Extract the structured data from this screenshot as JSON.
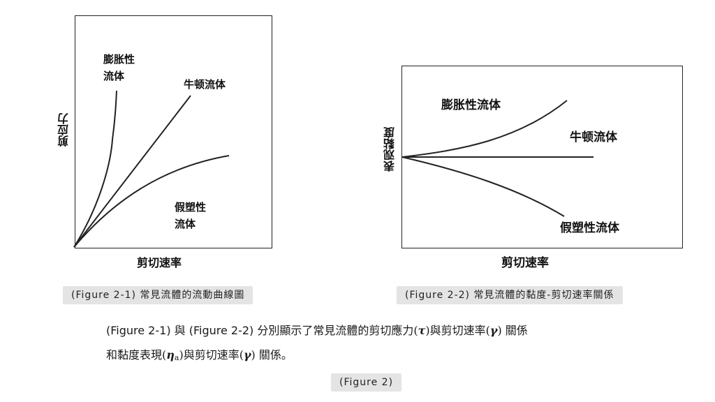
{
  "figure1": {
    "y_label": "剪应力",
    "x_label": "剪切速率",
    "curves": {
      "dilatant_line1": "膨胀性",
      "dilatant_line2": "流体",
      "newtonian": "牛顿流体",
      "pseudo_line1": "假塑性",
      "pseudo_line2": "流体"
    },
    "caption": "(Figure 2-1)  常見流體的流動曲線圖"
  },
  "figure2": {
    "y_label": "表观黏度",
    "x_label": "剪切速率",
    "curves": {
      "dilatant": "膨胀性流体",
      "newtonian": "牛顿流体",
      "pseudo": "假塑性流体"
    },
    "caption": "(Figure 2-2)  常見流體的黏度-剪切速率關係"
  },
  "description": {
    "line1_text": "(Figure 2-1) 與 (Figure 2-2) 分別顯示了常見流體的剪切應力",
    "tau_open": "(",
    "tau": "τ",
    "tau_close": ")",
    "line1_mid": "與剪切速率",
    "gamma_open": "(",
    "gamma": "γ",
    "gamma_close": ")",
    "line1_end": " 關係",
    "line2_start": "和黏度表現",
    "eta_open": "(",
    "eta": "η",
    "eta_sub": "a",
    "eta_close": ")",
    "line2_mid": "與剪切速率",
    "gamma2_open": "(",
    "gamma2": "γ",
    "gamma2_close": ")",
    "line2_end": " 關係。"
  },
  "footer_caption": "(Figure 2)"
}
